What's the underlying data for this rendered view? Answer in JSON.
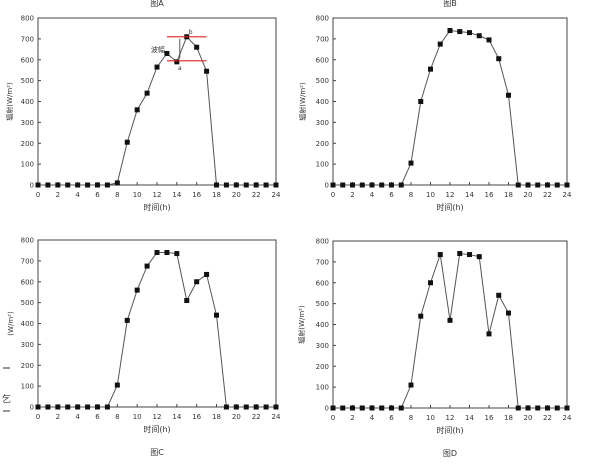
{
  "chart_data": [
    {
      "type": "line",
      "title": "图A",
      "xlabel": "时间(h)",
      "ylabel": "辐射(W/m²)",
      "xlim": [
        0,
        24
      ],
      "ylim": [
        0,
        800
      ],
      "xticks": [
        0,
        2,
        4,
        6,
        8,
        10,
        12,
        14,
        16,
        18,
        20,
        22,
        24
      ],
      "yticks": [
        0,
        100,
        200,
        300,
        400,
        500,
        600,
        700,
        800
      ],
      "x": [
        0,
        1,
        2,
        3,
        4,
        5,
        6,
        7,
        8,
        9,
        10,
        11,
        12,
        13,
        14,
        15,
        16,
        17,
        18,
        19,
        20,
        21,
        22,
        23,
        24
      ],
      "values": [
        0,
        0,
        0,
        0,
        0,
        0,
        0,
        0,
        10,
        205,
        360,
        440,
        565,
        630,
        590,
        710,
        660,
        545,
        0,
        0,
        0,
        0,
        0,
        0,
        0
      ],
      "annotation": {
        "label": "波幅",
        "a_label": "a",
        "b_label": "b",
        "upper_y": 710,
        "lower_y": 595,
        "x_range": [
          13,
          17
        ]
      },
      "grid": false,
      "marker_color": "#111111",
      "line_color": "#555555",
      "annotation_color": "#e02020"
    },
    {
      "type": "line",
      "title": "图B",
      "xlabel": "时间(h)",
      "ylabel": "辐射(W/m²)",
      "xlim": [
        0,
        24
      ],
      "ylim": [
        0,
        800
      ],
      "xticks": [
        0,
        2,
        4,
        6,
        8,
        10,
        12,
        14,
        16,
        18,
        20,
        22,
        24
      ],
      "yticks": [
        0,
        100,
        200,
        300,
        400,
        500,
        600,
        700,
        800
      ],
      "x": [
        0,
        1,
        2,
        3,
        4,
        5,
        6,
        7,
        8,
        9,
        10,
        11,
        12,
        13,
        14,
        15,
        16,
        17,
        18,
        19,
        20,
        21,
        22,
        23,
        24
      ],
      "values": [
        0,
        0,
        0,
        0,
        0,
        0,
        0,
        0,
        105,
        400,
        555,
        675,
        740,
        735,
        730,
        715,
        695,
        605,
        430,
        0,
        0,
        0,
        0,
        0,
        0
      ],
      "grid": false
    },
    {
      "type": "line",
      "title": "图C",
      "xlabel": "时间(h)",
      "ylabel": "(W/m²)",
      "xlim": [
        0,
        24
      ],
      "ylim": [
        0,
        800
      ],
      "xticks": [
        0,
        2,
        4,
        6,
        8,
        10,
        12,
        14,
        16,
        18,
        20,
        22,
        24
      ],
      "yticks": [
        0,
        100,
        200,
        300,
        400,
        500,
        600,
        700,
        800
      ],
      "x": [
        0,
        1,
        2,
        3,
        4,
        5,
        6,
        7,
        8,
        9,
        10,
        11,
        12,
        13,
        14,
        15,
        16,
        17,
        18,
        19,
        20,
        21,
        22,
        23,
        24
      ],
      "values": [
        0,
        0,
        0,
        0,
        0,
        0,
        0,
        0,
        105,
        415,
        560,
        675,
        740,
        740,
        735,
        510,
        600,
        635,
        440,
        0,
        0,
        0,
        0,
        0,
        0
      ],
      "grid": false
    },
    {
      "type": "line",
      "title": "图D",
      "xlabel": "时间(h)",
      "ylabel": "辐射(W/m²)",
      "xlim": [
        0,
        24
      ],
      "ylim": [
        0,
        800
      ],
      "xticks": [
        0,
        2,
        4,
        6,
        8,
        10,
        12,
        14,
        16,
        18,
        20,
        22,
        24
      ],
      "yticks": [
        0,
        100,
        200,
        300,
        400,
        500,
        600,
        700,
        800
      ],
      "x": [
        0,
        1,
        2,
        3,
        4,
        5,
        6,
        7,
        8,
        9,
        10,
        11,
        12,
        13,
        14,
        15,
        16,
        17,
        18,
        19,
        20,
        21,
        22,
        23,
        24
      ],
      "values": [
        0,
        0,
        0,
        0,
        0,
        0,
        0,
        0,
        110,
        440,
        600,
        735,
        420,
        740,
        735,
        725,
        355,
        540,
        455,
        0,
        0,
        0,
        0,
        0,
        0
      ],
      "grid": false
    }
  ],
  "side_note": "乞"
}
